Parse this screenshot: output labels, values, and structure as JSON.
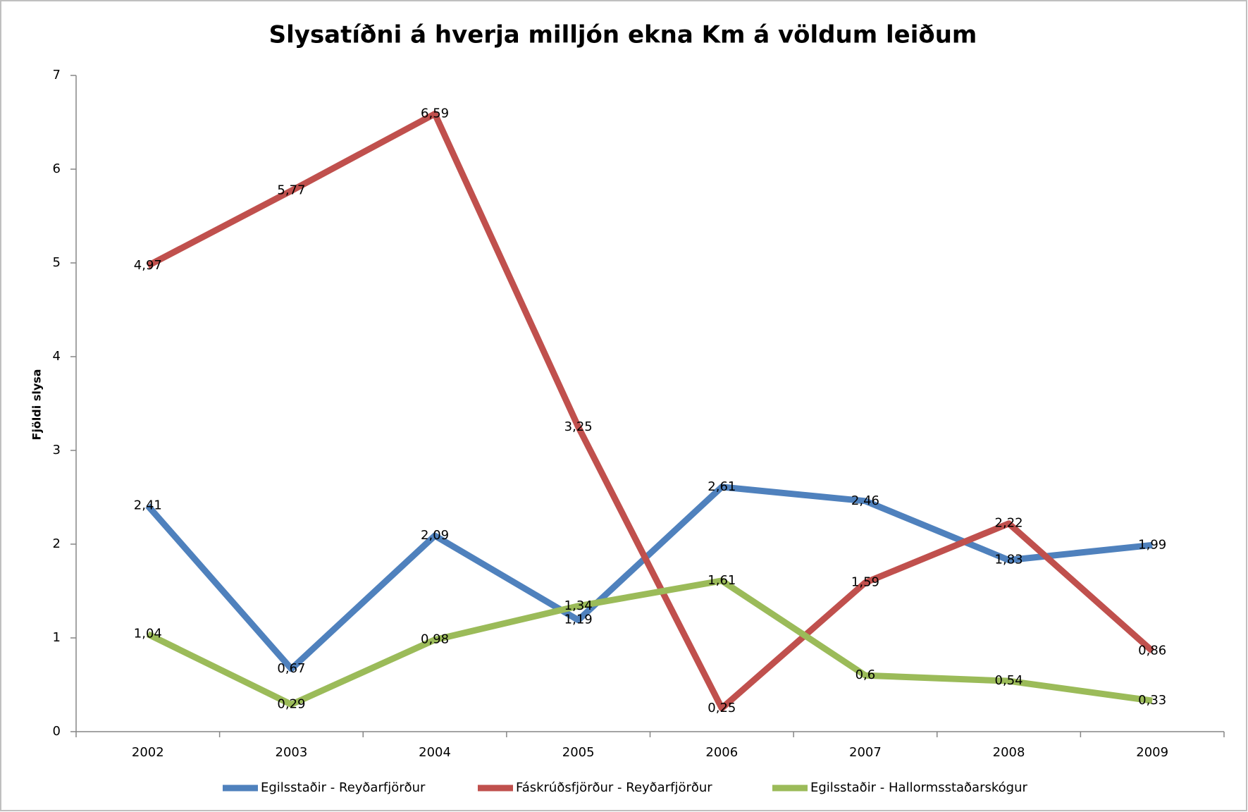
{
  "chart_data": {
    "type": "line",
    "title": "Slysatíðni á hverja milljón ekna Km á völdum leiðum",
    "y_label": "Fjöldi slysa",
    "categories": [
      "2002",
      "2003",
      "2004",
      "2005",
      "2006",
      "2007",
      "2008",
      "2009"
    ],
    "series": [
      {
        "name": "Egilsstaðir - Reyðarfjörður",
        "color": "#4f81bd",
        "values": [
          2.41,
          0.67,
          2.09,
          1.19,
          2.61,
          2.46,
          1.83,
          1.99
        ],
        "value_labels": [
          "2,41",
          "0,67",
          "2,09",
          "1,19",
          "2,61",
          "2,46",
          "1,83",
          "1,99"
        ]
      },
      {
        "name": "Fáskrúðsfjörður - Reyðarfjörður",
        "color": "#c0504d",
        "values": [
          4.97,
          5.77,
          6.59,
          3.25,
          0.25,
          1.59,
          2.22,
          0.86
        ],
        "value_labels": [
          "4,97",
          "5,77",
          "6,59",
          "3,25",
          "0,25",
          "1,59",
          "2,22",
          "0,86"
        ]
      },
      {
        "name": "Egilsstaðir - Hallormsstaðarskógur",
        "color": "#9bbb59",
        "values": [
          1.04,
          0.29,
          0.98,
          1.34,
          1.61,
          0.6,
          0.54,
          0.33
        ],
        "value_labels": [
          "1,04",
          "0,29",
          "0,98",
          "1,34",
          "1,61",
          "0,6",
          "0,54",
          "0,33"
        ]
      }
    ],
    "ylim": [
      0,
      7
    ],
    "yticks": [
      0,
      1,
      2,
      3,
      4,
      5,
      6,
      7
    ],
    "grid": false,
    "legend": "bottom"
  }
}
